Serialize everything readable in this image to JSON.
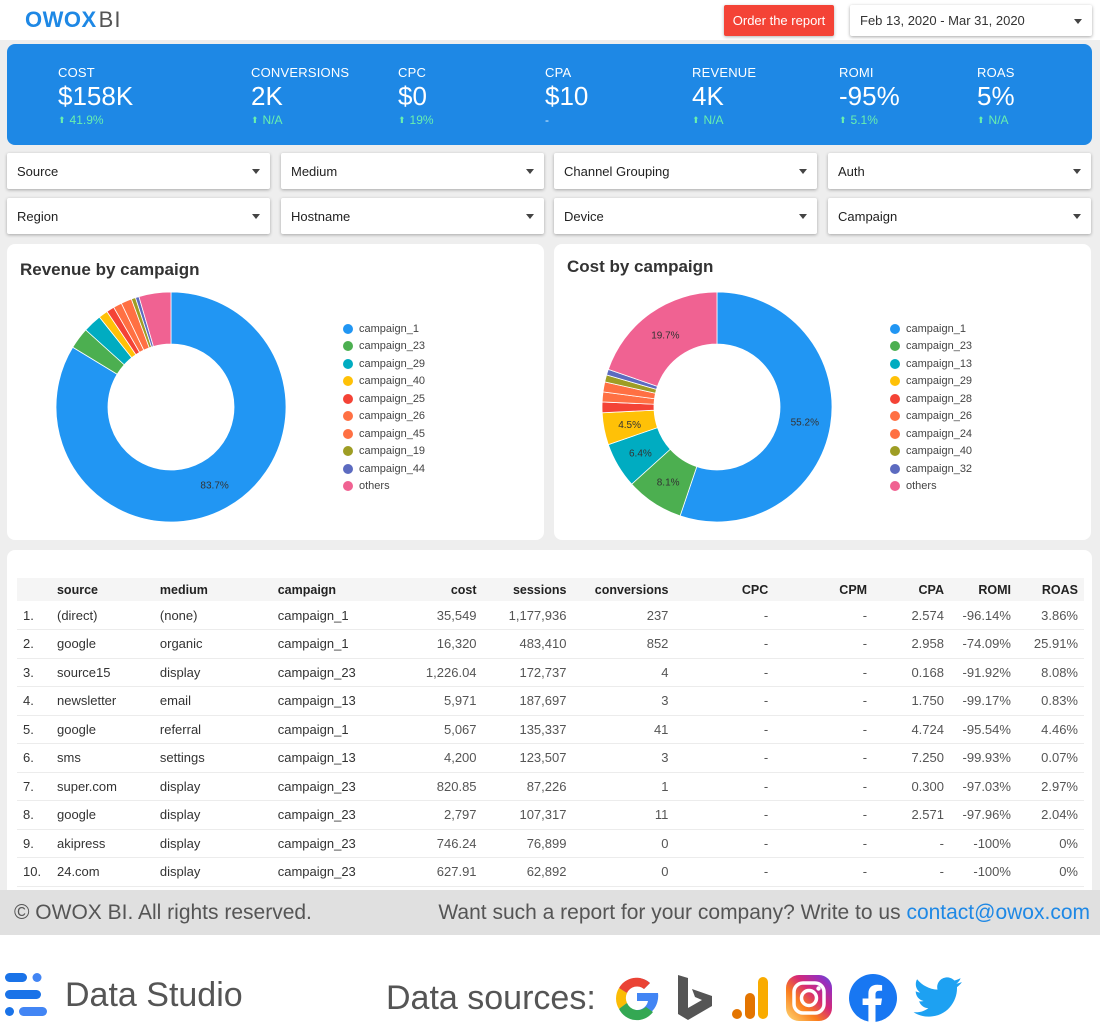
{
  "header": {
    "logo_main": "OWOX",
    "logo_sub": "BI",
    "order_button": "Order the report",
    "date_range": "Feb 13, 2020 - Mar 31, 2020"
  },
  "kpis": [
    {
      "label": "COST",
      "value": "$158K",
      "delta": "41.9%",
      "trend": "up"
    },
    {
      "label": "CONVERSIONS",
      "value": "2K",
      "delta": "N/A",
      "trend": "up"
    },
    {
      "label": "CPC",
      "value": "$0",
      "delta": "19%",
      "trend": "up"
    },
    {
      "label": "CPA",
      "value": "$10",
      "delta": "-",
      "trend": "none"
    },
    {
      "label": "REVENUE",
      "value": "4K",
      "delta": "N/A",
      "trend": "up"
    },
    {
      "label": "ROMI",
      "value": "-95%",
      "delta": "5.1%",
      "trend": "up"
    },
    {
      "label": "ROAS",
      "value": "5%",
      "delta": "N/A",
      "trend": "up"
    }
  ],
  "filters": [
    "Source",
    "Medium",
    "Channel Grouping",
    "Auth",
    "Region",
    "Hostname",
    "Device",
    "Campaign"
  ],
  "colors": {
    "accent": "#1e88e5",
    "order_button": "#f44336",
    "positive": "#69f0ae",
    "link": "#1e88e5"
  },
  "chart_data": [
    {
      "type": "pie",
      "title": "Revenue by campaign",
      "categories": [
        "campaign_1",
        "campaign_23",
        "campaign_29",
        "campaign_40",
        "campaign_25",
        "campaign_26",
        "campaign_45",
        "campaign_19",
        "campaign_44",
        "others"
      ],
      "values": [
        83.7,
        3.0,
        2.6,
        1.3,
        1.1,
        1.2,
        1.5,
        0.6,
        0.5,
        4.5
      ],
      "colors": [
        "#2196f3",
        "#4caf50",
        "#00acc1",
        "#ffc107",
        "#f44336",
        "#ff7043",
        "#ff7043",
        "#9e9d24",
        "#5c6bc0",
        "#f06292"
      ],
      "data_labels": [
        "83.7%",
        "",
        "",
        "",
        "",
        "",
        "",
        "",
        "",
        ""
      ],
      "style": "donut"
    },
    {
      "type": "pie",
      "title": "Cost by campaign",
      "categories": [
        "campaign_1",
        "campaign_23",
        "campaign_13",
        "campaign_29",
        "campaign_28",
        "campaign_26",
        "campaign_24",
        "campaign_40",
        "campaign_32",
        "others"
      ],
      "values": [
        55.2,
        8.1,
        6.4,
        4.5,
        1.5,
        1.4,
        1.4,
        1.0,
        0.8,
        19.7
      ],
      "colors": [
        "#2196f3",
        "#4caf50",
        "#00acc1",
        "#ffc107",
        "#f44336",
        "#ff7043",
        "#ff7043",
        "#9e9d24",
        "#5c6bc0",
        "#f06292"
      ],
      "data_labels": [
        "55.2%",
        "8.1%",
        "6.4%",
        "4.5%",
        "",
        "",
        "",
        "",
        "",
        "19.7%"
      ],
      "style": "donut"
    }
  ],
  "table": {
    "columns": [
      "",
      "source",
      "medium",
      "campaign",
      "cost",
      "sessions",
      "conversions",
      "CPC",
      "CPM",
      "CPA",
      "ROMI",
      "ROAS"
    ],
    "rows": [
      [
        "1.",
        "(direct)",
        "(none)",
        "campaign_1",
        "35,549",
        "1,177,936",
        "237",
        "-",
        "-",
        "2.574",
        "-96.14%",
        "3.86%"
      ],
      [
        "2.",
        "google",
        "organic",
        "campaign_1",
        "16,320",
        "483,410",
        "852",
        "-",
        "-",
        "2.958",
        "-74.09%",
        "25.91%"
      ],
      [
        "3.",
        "source15",
        "display",
        "campaign_23",
        "1,226.04",
        "172,737",
        "4",
        "-",
        "-",
        "0.168",
        "-91.92%",
        "8.08%"
      ],
      [
        "4.",
        "newsletter",
        "email",
        "campaign_13",
        "5,971",
        "187,697",
        "3",
        "-",
        "-",
        "1.750",
        "-99.17%",
        "0.83%"
      ],
      [
        "5.",
        "google",
        "referral",
        "campaign_1",
        "5,067",
        "135,337",
        "41",
        "-",
        "-",
        "4.724",
        "-95.54%",
        "4.46%"
      ],
      [
        "6.",
        "sms",
        "settings",
        "campaign_13",
        "4,200",
        "123,507",
        "3",
        "-",
        "-",
        "7.250",
        "-99.93%",
        "0.07%"
      ],
      [
        "7.",
        "super.com",
        "display",
        "campaign_23",
        "820.85",
        "87,226",
        "1",
        "-",
        "-",
        "0.300",
        "-97.03%",
        "2.97%"
      ],
      [
        "8.",
        "google",
        "display",
        "campaign_23",
        "2,797",
        "107,317",
        "11",
        "-",
        "-",
        "2.571",
        "-97.96%",
        "2.04%"
      ],
      [
        "9.",
        "akipress",
        "display",
        "campaign_23",
        "746.24",
        "76,899",
        "0",
        "-",
        "-",
        "-",
        "-100%",
        "0%"
      ],
      [
        "10.",
        "24.com",
        "display",
        "campaign_23",
        "627.91",
        "62,892",
        "0",
        "-",
        "-",
        "-",
        "-100%",
        "0%"
      ]
    ]
  },
  "footer": {
    "copyright": "© OWOX BI. All rights reserved.",
    "cta_text": "Want such a report for your company? Write to us",
    "cta_email": "contact@owox.com"
  },
  "bottom": {
    "data_studio": "Data Studio",
    "data_sources": "Data sources:",
    "source_icons": [
      "google-icon",
      "bing-icon",
      "google-analytics-icon",
      "instagram-icon",
      "facebook-icon",
      "twitter-icon"
    ]
  }
}
